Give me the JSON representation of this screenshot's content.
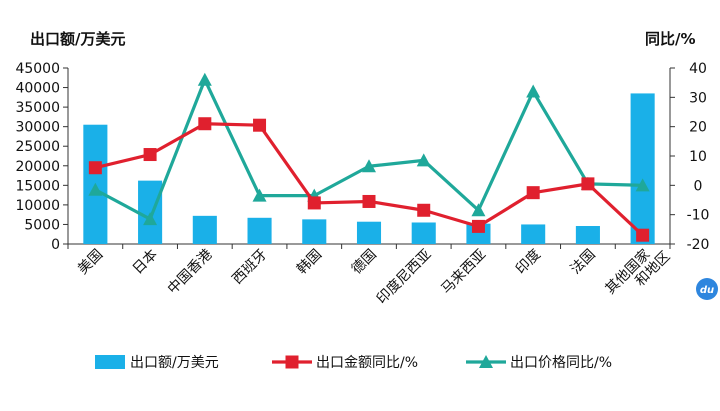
{
  "chart_data": {
    "type": "bar",
    "categories": [
      "美国",
      "日本",
      "中国香港",
      "西班牙",
      "韩国",
      "德国",
      "印度尼西亚",
      "马来西亚",
      "印度",
      "法国",
      "其他国家\n和地区"
    ],
    "series": [
      {
        "name": "出口额/万美元",
        "type": "bar",
        "axis": "left",
        "values": [
          30500,
          16200,
          7200,
          6700,
          6300,
          5700,
          5500,
          5200,
          5000,
          4600,
          38500
        ]
      },
      {
        "name": "出口金额同比/%",
        "type": "line",
        "axis": "right",
        "values": [
          6,
          10.5,
          21,
          20.5,
          -6,
          -5.5,
          -8.5,
          -14,
          -2.5,
          0.5,
          -17
        ]
      },
      {
        "name": "出口价格同比/%",
        "type": "line",
        "axis": "right",
        "values": [
          -1.5,
          -11.5,
          36,
          -3.5,
          -3.5,
          6.5,
          8.5,
          -8.5,
          32,
          0.5,
          0
        ]
      }
    ],
    "ylabel": "出口额/万美元",
    "y2label": "同比/%",
    "ylim": [
      0,
      45000
    ],
    "yticks": [
      0,
      5000,
      10000,
      15000,
      20000,
      25000,
      30000,
      35000,
      40000,
      45000
    ],
    "y2lim": [
      -20,
      40
    ],
    "y2ticks": [
      -20,
      -10,
      0,
      10,
      20,
      30,
      40
    ],
    "legend_position": "bottom",
    "grid": false,
    "colors": {
      "bar": "#1ab0e8",
      "amount_line": "#e0202e",
      "price_line": "#1fa89a",
      "badge": "#2e86de"
    },
    "badge_label": "du"
  }
}
